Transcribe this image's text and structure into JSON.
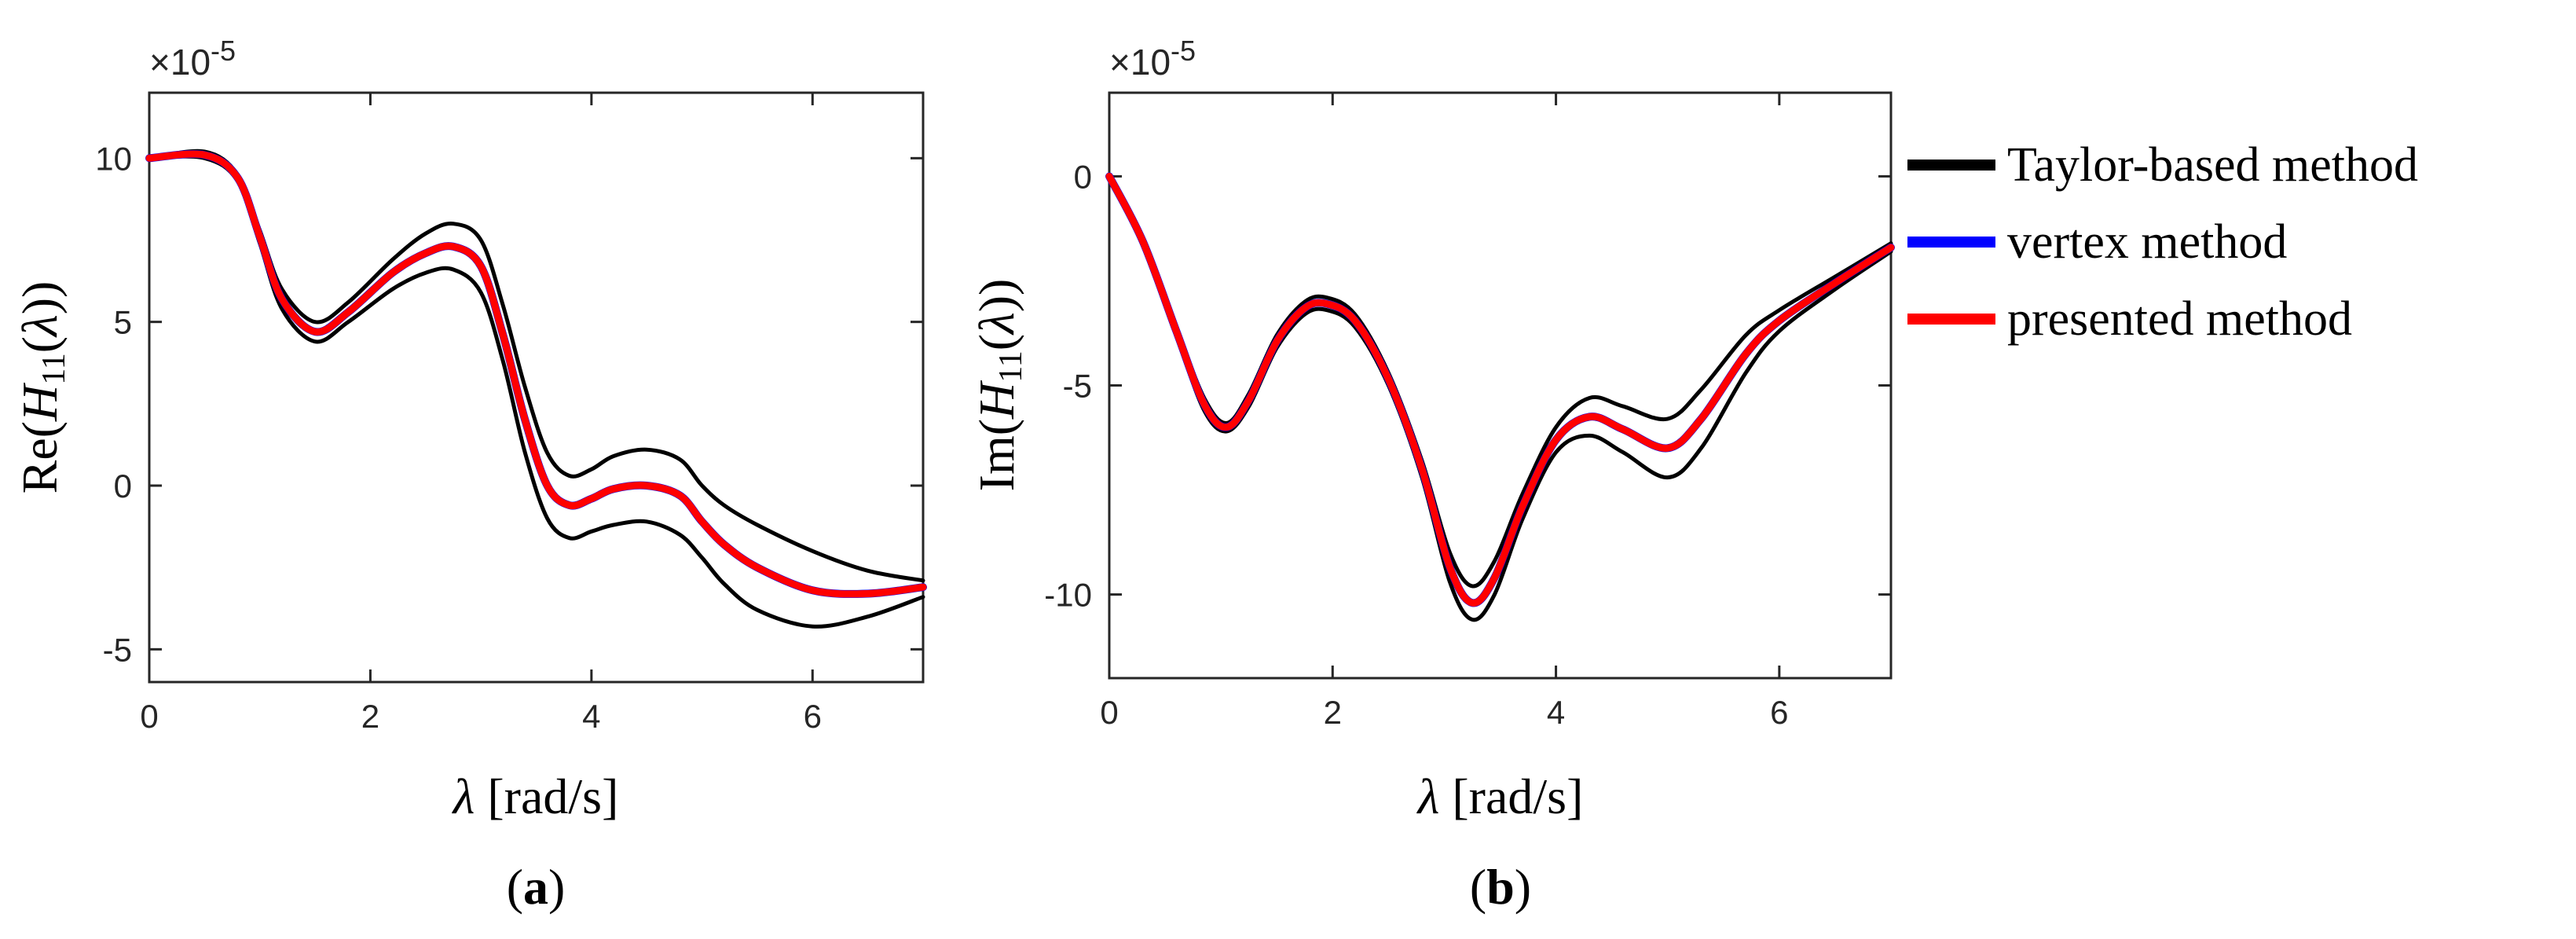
{
  "chart_data": [
    {
      "type": "line",
      "panel_label": "a",
      "multiplier_label": "×10",
      "multiplier_exp": "-5",
      "xlabel_sym": "λ",
      "xlabel_unit": " [rad/s]",
      "ylabel": "Re(H11(λ))",
      "ylabel_parts": {
        "pre": "Re(",
        "H": "H",
        "sub": "11",
        "mid": "(",
        "lam": "λ",
        "post": "))"
      },
      "xlim": [
        0,
        7
      ],
      "ylim": [
        -6,
        12
      ],
      "xticks": [
        0,
        2,
        4,
        6
      ],
      "xtick_labels": [
        "0",
        "2",
        "4",
        "6"
      ],
      "yticks": [
        -5,
        0,
        5,
        10
      ],
      "ytick_labels": [
        "-5",
        "0",
        "5",
        "10"
      ],
      "series": [
        {
          "name": "Taylor-based method (upper)",
          "color": "#000000",
          "x": [
            0,
            0.5,
            0.8,
            1.0,
            1.2,
            1.5,
            1.8,
            2.2,
            2.5,
            2.75,
            3.0,
            3.2,
            3.4,
            3.6,
            3.8,
            4.0,
            4.2,
            4.5,
            4.8,
            5.0,
            5.2,
            5.5,
            6.0,
            6.5,
            7.0
          ],
          "y": [
            10,
            10.2,
            9.5,
            7.8,
            6.0,
            5.0,
            5.6,
            6.9,
            7.7,
            8.0,
            7.5,
            5.5,
            3.0,
            1.0,
            0.3,
            0.5,
            0.9,
            1.1,
            0.8,
            0.0,
            -0.6,
            -1.2,
            -2.0,
            -2.6,
            -2.9
          ]
        },
        {
          "name": "Taylor-based method (lower)",
          "color": "#000000",
          "x": [
            0,
            0.5,
            0.8,
            1.0,
            1.2,
            1.5,
            1.8,
            2.2,
            2.5,
            2.75,
            3.0,
            3.2,
            3.4,
            3.6,
            3.8,
            4.0,
            4.2,
            4.5,
            4.8,
            5.0,
            5.2,
            5.5,
            6.0,
            6.5,
            7.0
          ],
          "y": [
            10,
            10.0,
            9.3,
            7.4,
            5.4,
            4.4,
            5.0,
            6.0,
            6.5,
            6.6,
            5.9,
            3.8,
            1.0,
            -1.0,
            -1.6,
            -1.4,
            -1.2,
            -1.1,
            -1.5,
            -2.2,
            -3.0,
            -3.8,
            -4.3,
            -4.0,
            -3.4
          ]
        },
        {
          "name": "vertex method",
          "color": "#0000ff",
          "x": [
            0,
            0.5,
            0.8,
            1.0,
            1.2,
            1.5,
            1.8,
            2.2,
            2.5,
            2.75,
            3.0,
            3.2,
            3.4,
            3.6,
            3.8,
            4.0,
            4.2,
            4.5,
            4.8,
            5.0,
            5.2,
            5.5,
            6.0,
            6.5,
            7.0
          ],
          "y": [
            10,
            10.1,
            9.4,
            7.6,
            5.7,
            4.7,
            5.3,
            6.5,
            7.1,
            7.3,
            6.7,
            4.6,
            2.0,
            0.0,
            -0.6,
            -0.4,
            -0.1,
            0.0,
            -0.3,
            -1.1,
            -1.8,
            -2.5,
            -3.2,
            -3.3,
            -3.1
          ]
        },
        {
          "name": "presented method",
          "color": "#ff0000",
          "x": [
            0,
            0.5,
            0.8,
            1.0,
            1.2,
            1.5,
            1.8,
            2.2,
            2.5,
            2.75,
            3.0,
            3.2,
            3.4,
            3.6,
            3.8,
            4.0,
            4.2,
            4.5,
            4.8,
            5.0,
            5.2,
            5.5,
            6.0,
            6.5,
            7.0
          ],
          "y": [
            10,
            10.1,
            9.4,
            7.6,
            5.7,
            4.7,
            5.3,
            6.5,
            7.1,
            7.3,
            6.7,
            4.6,
            2.0,
            0.0,
            -0.6,
            -0.4,
            -0.1,
            0.0,
            -0.3,
            -1.1,
            -1.8,
            -2.5,
            -3.2,
            -3.3,
            -3.1
          ]
        }
      ]
    },
    {
      "type": "line",
      "panel_label": "b",
      "multiplier_label": "×10",
      "multiplier_exp": "-5",
      "xlabel_sym": "λ",
      "xlabel_unit": " [rad/s]",
      "ylabel": "Im(H11(λ))",
      "ylabel_parts": {
        "pre": "Im(",
        "H": "H",
        "sub": "11",
        "mid": "(",
        "lam": "λ",
        "post": "))"
      },
      "xlim": [
        0,
        7
      ],
      "ylim": [
        -12,
        2
      ],
      "xticks": [
        0,
        2,
        4,
        6
      ],
      "xtick_labels": [
        "0",
        "2",
        "4",
        "6"
      ],
      "yticks": [
        -10,
        -5,
        0
      ],
      "ytick_labels": [
        "-10",
        "-5",
        "0"
      ],
      "series": [
        {
          "name": "Taylor-based method (upper)",
          "color": "#000000",
          "x": [
            0,
            0.3,
            0.6,
            0.85,
            1.05,
            1.25,
            1.5,
            1.75,
            1.95,
            2.2,
            2.5,
            2.8,
            3.05,
            3.25,
            3.45,
            3.7,
            4.0,
            4.3,
            4.6,
            5.0,
            5.3,
            5.7,
            6.0,
            6.5,
            7.0
          ],
          "y": [
            0,
            -1.5,
            -3.6,
            -5.3,
            -5.9,
            -5.2,
            -3.8,
            -3.0,
            -2.9,
            -3.3,
            -4.7,
            -6.8,
            -9.0,
            -9.8,
            -9.2,
            -7.6,
            -6.0,
            -5.3,
            -5.5,
            -5.8,
            -5.1,
            -3.8,
            -3.2,
            -2.4,
            -1.6
          ]
        },
        {
          "name": "Taylor-based method (lower)",
          "color": "#000000",
          "x": [
            0,
            0.3,
            0.6,
            0.85,
            1.05,
            1.25,
            1.5,
            1.75,
            1.95,
            2.2,
            2.5,
            2.8,
            3.05,
            3.25,
            3.45,
            3.7,
            4.0,
            4.3,
            4.6,
            5.0,
            5.3,
            5.7,
            6.0,
            6.5,
            7.0
          ],
          "y": [
            0,
            -1.6,
            -3.8,
            -5.6,
            -6.1,
            -5.5,
            -4.1,
            -3.3,
            -3.2,
            -3.6,
            -5.0,
            -7.2,
            -9.7,
            -10.6,
            -10.0,
            -8.2,
            -6.6,
            -6.2,
            -6.6,
            -7.2,
            -6.5,
            -4.7,
            -3.7,
            -2.7,
            -1.8
          ]
        },
        {
          "name": "vertex method",
          "color": "#0000ff",
          "x": [
            0,
            0.3,
            0.6,
            0.85,
            1.05,
            1.25,
            1.5,
            1.75,
            1.95,
            2.2,
            2.5,
            2.8,
            3.05,
            3.25,
            3.45,
            3.7,
            4.0,
            4.3,
            4.6,
            5.0,
            5.3,
            5.7,
            6.0,
            6.5,
            7.0
          ],
          "y": [
            0,
            -1.55,
            -3.7,
            -5.45,
            -6.0,
            -5.35,
            -3.95,
            -3.15,
            -3.05,
            -3.45,
            -4.85,
            -7.0,
            -9.35,
            -10.2,
            -9.6,
            -7.9,
            -6.3,
            -5.75,
            -6.05,
            -6.5,
            -5.8,
            -4.25,
            -3.45,
            -2.55,
            -1.7
          ]
        },
        {
          "name": "presented method",
          "color": "#ff0000",
          "x": [
            0,
            0.3,
            0.6,
            0.85,
            1.05,
            1.25,
            1.5,
            1.75,
            1.95,
            2.2,
            2.5,
            2.8,
            3.05,
            3.25,
            3.45,
            3.7,
            4.0,
            4.3,
            4.6,
            5.0,
            5.3,
            5.7,
            6.0,
            6.5,
            7.0
          ],
          "y": [
            0,
            -1.55,
            -3.7,
            -5.45,
            -6.0,
            -5.35,
            -3.95,
            -3.15,
            -3.05,
            -3.45,
            -4.85,
            -7.0,
            -9.35,
            -10.2,
            -9.6,
            -7.9,
            -6.3,
            -5.75,
            -6.05,
            -6.5,
            -5.8,
            -4.25,
            -3.45,
            -2.55,
            -1.7
          ]
        }
      ]
    }
  ],
  "legend": {
    "position": "right of panel b",
    "entries": [
      {
        "label": "Taylor-based method",
        "color": "#000000"
      },
      {
        "label": "vertex method",
        "color": "#0000ff"
      },
      {
        "label": "presented method",
        "color": "#ff0000"
      }
    ]
  }
}
